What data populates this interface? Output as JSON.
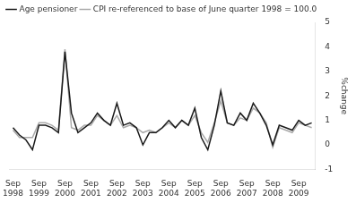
{
  "chart_data": {
    "type": "line",
    "ylabel": "%change",
    "categories": [
      "Sep\n1998",
      null,
      null,
      null,
      "Sep\n1999",
      null,
      null,
      null,
      "Sep\n2000",
      null,
      null,
      null,
      "Sep\n2001",
      null,
      null,
      null,
      "Sep\n2002",
      null,
      null,
      null,
      "Sep\n2003",
      null,
      null,
      null,
      "Sep\n2004",
      null,
      null,
      null,
      "Sep\n2005",
      null,
      null,
      null,
      "Sep\n2006",
      null,
      null,
      null,
      "Sep\n2007",
      null,
      null,
      null,
      "Sep\n2008",
      null,
      null,
      null,
      "Sep\n2009",
      null,
      null
    ],
    "series": [
      {
        "name": "Age pensioner",
        "color": "#1a1a1a",
        "values": [
          0.7,
          0.4,
          0.2,
          -0.2,
          0.8,
          0.8,
          0.7,
          0.5,
          3.8,
          1.3,
          0.5,
          0.7,
          0.9,
          1.3,
          1.0,
          0.8,
          1.7,
          0.8,
          0.9,
          0.7,
          0.0,
          0.5,
          0.5,
          0.7,
          1.0,
          0.7,
          1.0,
          0.8,
          1.5,
          0.3,
          -0.2,
          0.8,
          2.2,
          0.9,
          0.8,
          1.3,
          1.0,
          1.7,
          1.3,
          0.8,
          0.0,
          0.8,
          0.7,
          0.6,
          1.0,
          0.8,
          0.9
        ]
      },
      {
        "name": "CPI re-referenced to base of June quarter 1998 = 100.0",
        "color": "#aaaaaa",
        "values": [
          0.6,
          0.3,
          0.3,
          0.3,
          0.9,
          0.9,
          0.8,
          0.6,
          3.9,
          0.7,
          0.6,
          0.8,
          0.8,
          1.2,
          1.0,
          0.8,
          1.2,
          0.7,
          0.8,
          0.7,
          0.5,
          0.6,
          0.5,
          0.7,
          0.9,
          0.7,
          1.0,
          0.8,
          1.2,
          0.5,
          0.1,
          0.9,
          1.8,
          0.9,
          0.8,
          1.1,
          1.0,
          1.5,
          1.3,
          0.9,
          -0.1,
          0.7,
          0.6,
          0.5,
          0.9,
          0.8,
          0.7
        ]
      }
    ],
    "ylim": [
      -1,
      5
    ],
    "yticks": [
      -1,
      0,
      1,
      2,
      3,
      4,
      5
    ],
    "grid": false,
    "legend": "upper left"
  }
}
